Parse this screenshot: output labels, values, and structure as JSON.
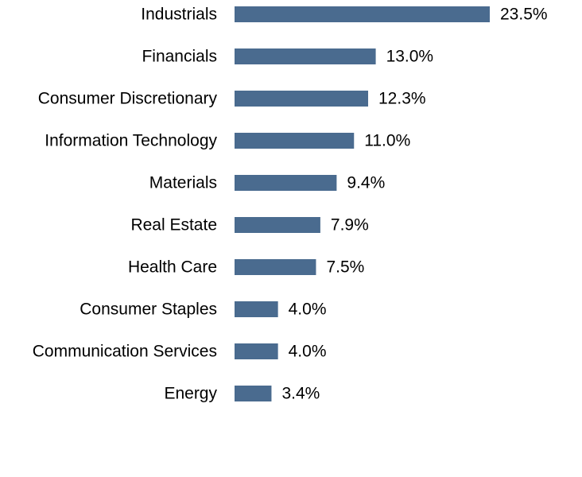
{
  "chart_data": {
    "type": "bar",
    "orientation": "horizontal",
    "categories": [
      "Industrials",
      "Financials",
      "Consumer Discretionary",
      "Information Technology",
      "Materials",
      "Real Estate",
      "Health Care",
      "Consumer Staples",
      "Communication Services",
      "Energy"
    ],
    "values": [
      23.5,
      13.0,
      12.3,
      11.0,
      9.4,
      7.9,
      7.5,
      4.0,
      4.0,
      3.4
    ],
    "value_labels": [
      "23.5%",
      "13.0%",
      "12.3%",
      "11.0%",
      "9.4%",
      "7.9%",
      "7.5%",
      "4.0%",
      "4.0%",
      "3.4%"
    ],
    "unit": "%",
    "xlim": [
      0,
      23.5
    ],
    "bar_color": "#4a6b8f",
    "grid": false,
    "legend": "none",
    "title": "",
    "xlabel": "",
    "ylabel": ""
  }
}
